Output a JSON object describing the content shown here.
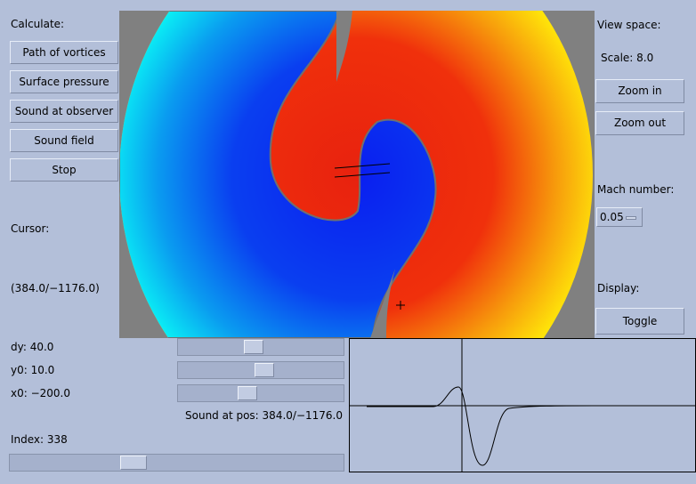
{
  "left_panel": {
    "title": "Calculate:",
    "buttons": [
      "Path of vortices",
      "Surface pressure",
      "Sound at observer",
      "Sound field",
      "Stop"
    ],
    "cursor_label": "Cursor:",
    "cursor_value": "(384.0/−1176.0)"
  },
  "right_panel": {
    "title": "View space:",
    "scale": "Scale: 8.0",
    "buttons": [
      "Zoom in",
      "Zoom out"
    ],
    "mach_label": "Mach number:",
    "mach_value": "0.05",
    "display_label": "Display:",
    "toggle": "Toggle"
  },
  "controls": {
    "sliders": [
      "dy: 40.0",
      "y0: 10.0",
      "x0: −200.0"
    ],
    "sound_at_pos": "Sound at pos: 384.0/−1176.0",
    "index": "Index: 338"
  }
}
